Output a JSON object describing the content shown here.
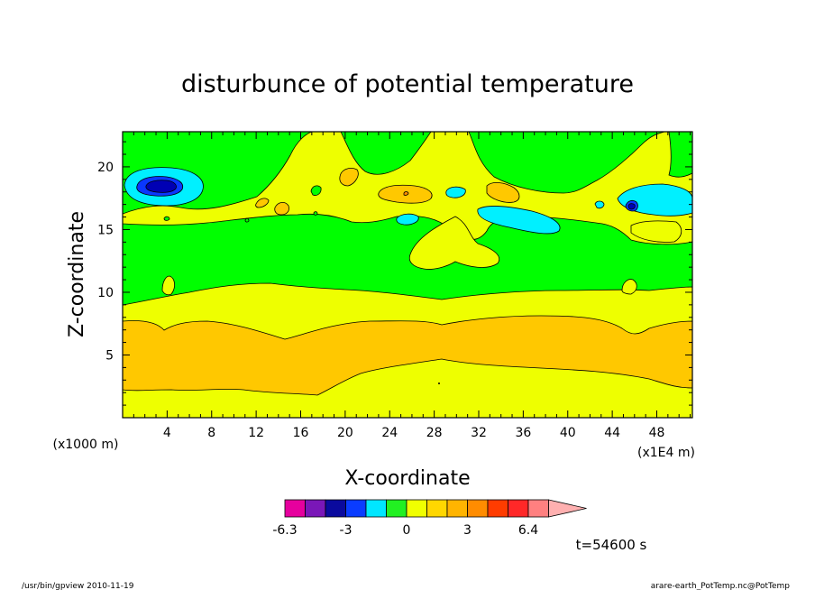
{
  "chart_data": {
    "type": "heatmap",
    "title": "disturbunce of potential temperature",
    "xlabel": "X-coordinate",
    "ylabel": "Z-coordinate",
    "x_unit_label": "(x1E4 m)",
    "y_unit_label": "(x1000 m)",
    "xlim": [
      0,
      51.2
    ],
    "ylim": [
      0,
      22.8
    ],
    "x_ticks": [
      "4",
      "8",
      "12",
      "16",
      "20",
      "24",
      "28",
      "32",
      "36",
      "40",
      "44",
      "48"
    ],
    "y_ticks": [
      "5",
      "10",
      "15",
      "20"
    ],
    "colorbar": {
      "tick_labels": [
        "-6.3",
        "-3",
        "0",
        "3",
        "6.4"
      ],
      "colors": [
        "#e6009e",
        "#7a17b8",
        "#0a0a9e",
        "#0a3cff",
        "#00e6ff",
        "#22f022",
        "#f0ff00",
        "#ffd700",
        "#ffb400",
        "#ff8c00",
        "#ff3c00",
        "#ff2828",
        "#ff8080",
        "#ffb0b0"
      ]
    },
    "fill_colors": {
      "green": "#00ff00",
      "yellow": "#eeff00",
      "orange": "#ffc800",
      "cyan": "#00f0ff",
      "blue": "#0a37ff",
      "darkblue": "#0000b4"
    },
    "annotation": "t=54600 s"
  },
  "footer": {
    "left": "/usr/bin/gpview   2010-11-19",
    "right": "arare-earth_PotTemp.nc@PotTemp"
  }
}
